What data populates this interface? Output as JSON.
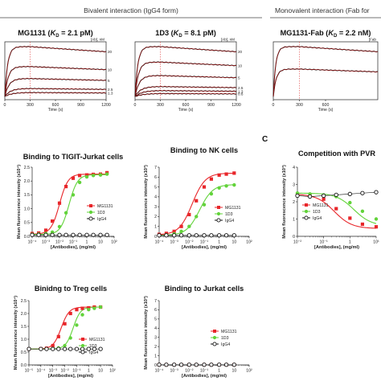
{
  "headers": {
    "bivalent": "Bivalent interaction (IgG4 form)",
    "monovalent": "Monovalent interaction (Fab for"
  },
  "panel_letters": {
    "c": "C"
  },
  "colors": {
    "mg1131": "#e8262a",
    "d13": "#62d33a",
    "igg4": "#111111",
    "fit": "#cc0000",
    "sensor": "#222222",
    "dash": "#e04040"
  },
  "legend_labels": [
    "MG1131",
    "1D3",
    "IgG4"
  ],
  "chart_data": [
    {
      "id": "spr_mg1131",
      "type": "line",
      "title": "MG1131 (KD = 2.1 pM)",
      "title_parts": [
        "MG1131 (",
        "K",
        "D",
        " = 2.1 pM)"
      ],
      "xlabel": "Time (s)",
      "x_ticks": [
        "0",
        "300",
        "600",
        "900",
        "1200"
      ],
      "xlim": [
        0,
        1200
      ],
      "conc_header": "[Ab], nM",
      "association_end": 300,
      "series": [
        {
          "name": "20",
          "plateau": 1.0,
          "kobs": 0.03
        },
        {
          "name": "10",
          "plateau": 0.6,
          "kobs": 0.025
        },
        {
          "name": "5",
          "plateau": 0.36,
          "kobs": 0.02
        },
        {
          "name": "2.5",
          "plateau": 0.16,
          "kobs": 0.015
        },
        {
          "name": "1.3",
          "plateau": 0.08,
          "kobs": 0.012
        }
      ]
    },
    {
      "id": "spr_1d3",
      "type": "line",
      "title": "1D3 (KD = 8.1 pM)",
      "title_parts": [
        "1D3 (",
        "K",
        "D",
        " = 8.1 pM)"
      ],
      "xlabel": "Time (s)",
      "x_ticks": [
        "0",
        "300",
        "600",
        "900",
        "1200"
      ],
      "xlim": [
        0,
        1200
      ],
      "conc_header": "[Ab], nM",
      "association_end": 300,
      "series": [
        {
          "name": "20",
          "plateau": 1.0,
          "kobs": 0.03
        },
        {
          "name": "10",
          "plateau": 0.69,
          "kobs": 0.025
        },
        {
          "name": "5",
          "plateau": 0.42,
          "kobs": 0.02
        },
        {
          "name": "2.5",
          "plateau": 0.2,
          "kobs": 0.015
        },
        {
          "name": "1.3",
          "plateau": 0.12,
          "kobs": 0.012
        },
        {
          "name": "0.6",
          "plateau": 0.06,
          "kobs": 0.01
        }
      ]
    },
    {
      "id": "spr_fab",
      "type": "line",
      "title": "MG1131-Fab (KD = 2.2 nM)",
      "title_parts": [
        "MG1131-Fab (",
        "K",
        "D",
        " = 2.2 nM)"
      ],
      "xlabel": "Time (s)",
      "x_ticks": [
        "0",
        "300",
        "600"
      ],
      "xlim": [
        0,
        1200
      ],
      "conc_header": "[Fab",
      "association_end": 300,
      "series": [
        {
          "name": "",
          "plateau": 1.0,
          "kobs": 0.035
        },
        {
          "name": "",
          "plateau": 0.55,
          "kobs": 0.03
        }
      ]
    },
    {
      "id": "tigit_jurkat",
      "type": "line",
      "title": "Binding to TIGIT-Jurkat cells",
      "xlabel": "[Antibodies], (mg/ml)",
      "ylabel": "Mean fluorescence intensity (x10⁴)",
      "x_ticks": [
        "10⁻⁴",
        "10⁻³",
        "10⁻²",
        "10⁻¹",
        "1",
        "10",
        "10²"
      ],
      "y_ticks": [
        "0.0",
        "0.5",
        "1.0",
        "1.5",
        "2.0",
        "2.5"
      ],
      "xlim_log10": [
        -4,
        2
      ],
      "ylim": [
        0,
        2.5
      ],
      "series": [
        {
          "name": "MG1131",
          "x": [
            0.0001,
            0.0003,
            0.001,
            0.003,
            0.01,
            0.03,
            0.1,
            0.3,
            1,
            3,
            10,
            30
          ],
          "y": [
            0.1,
            0.12,
            0.22,
            0.55,
            1.2,
            1.8,
            2.1,
            2.2,
            2.22,
            2.24,
            2.25,
            2.3
          ]
        },
        {
          "name": "1D3",
          "x": [
            0.0001,
            0.0003,
            0.001,
            0.003,
            0.01,
            0.03,
            0.1,
            0.3,
            1,
            3,
            10,
            30
          ],
          "y": [
            0.07,
            0.08,
            0.1,
            0.15,
            0.35,
            0.85,
            1.5,
            1.95,
            2.15,
            2.2,
            2.22,
            2.25
          ]
        },
        {
          "name": "IgG4",
          "x": [
            0.0001,
            0.0003,
            0.001,
            0.003,
            0.01,
            0.03,
            0.1,
            0.3,
            1,
            3,
            10,
            30
          ],
          "y": [
            0.05,
            0.05,
            0.05,
            0.05,
            0.05,
            0.05,
            0.05,
            0.05,
            0.05,
            0.05,
            0.05,
            0.05
          ]
        }
      ],
      "fit_ec50_log10": [
        -2.0,
        -1.3
      ],
      "fit_top": [
        2.25,
        2.23
      ],
      "fit_bottom": [
        0.08,
        0.07
      ],
      "fit_hill": [
        1.4,
        1.4
      ]
    },
    {
      "id": "nk_cells",
      "type": "line",
      "title": "Binding to NK cells",
      "xlabel": "[Antibodies], (mg/ml)",
      "ylabel": "Mean fluorescence intensity (x10³)",
      "x_ticks": [
        "10⁻⁴",
        "10⁻³",
        "10⁻²",
        "10⁻¹",
        "1",
        "10",
        "10²"
      ],
      "y_ticks": [
        "0",
        "1",
        "2",
        "3",
        "4",
        "5",
        "6",
        "7"
      ],
      "xlim_log10": [
        -4,
        2
      ],
      "ylim": [
        0,
        7
      ],
      "series": [
        {
          "name": "MG1131",
          "x": [
            0.0001,
            0.0003,
            0.001,
            0.003,
            0.01,
            0.03,
            0.1,
            0.3,
            1,
            3,
            10
          ],
          "y": [
            0.2,
            0.3,
            0.5,
            1.0,
            2.2,
            3.6,
            5.0,
            5.8,
            6.2,
            6.3,
            6.4
          ]
        },
        {
          "name": "1D3",
          "x": [
            0.0001,
            0.0003,
            0.001,
            0.003,
            0.01,
            0.03,
            0.1,
            0.3,
            1,
            3,
            10
          ],
          "y": [
            0.1,
            0.15,
            0.25,
            0.5,
            1.0,
            2.0,
            3.2,
            4.3,
            4.9,
            5.1,
            5.2
          ]
        },
        {
          "name": "IgG4",
          "x": [
            0.0001,
            0.0003,
            0.001,
            0.003,
            0.01,
            0.03,
            0.1,
            0.3,
            1,
            3,
            10
          ],
          "y": [
            0.1,
            0.1,
            0.1,
            0.1,
            0.1,
            0.1,
            0.1,
            0.1,
            0.1,
            0.1,
            0.1
          ]
        }
      ],
      "fit_ec50_log10": [
        -1.8,
        -1.3
      ],
      "fit_top": [
        6.4,
        5.25
      ],
      "fit_bottom": [
        0.15,
        0.1
      ],
      "fit_hill": [
        1.0,
        1.0
      ]
    },
    {
      "id": "competition_pvr",
      "type": "line",
      "title": "Competition with PVR",
      "xlabel": "[Antibodies], (mg/ml)",
      "ylabel": "Mean fluorescence intensity (x10³)",
      "x_ticks": [
        "10⁻²",
        "10⁻¹",
        "1",
        "10¹"
      ],
      "y_ticks": [
        "0",
        "1",
        "2",
        "3",
        "4"
      ],
      "xlim_log10": [
        -2,
        1
      ],
      "ylim": [
        0,
        4
      ],
      "series": [
        {
          "name": "MG1131",
          "x": [
            0.01,
            0.03,
            0.1,
            0.3,
            1,
            3,
            10
          ],
          "y": [
            2.4,
            2.35,
            2.15,
            1.6,
            1.05,
            0.7,
            0.55
          ]
        },
        {
          "name": "1D3",
          "x": [
            0.01,
            0.03,
            0.1,
            0.3,
            1,
            3,
            10
          ],
          "y": [
            2.5,
            2.45,
            2.4,
            2.3,
            1.95,
            1.45,
            1.0
          ]
        },
        {
          "name": "IgG4",
          "x": [
            0.01,
            0.03,
            0.1,
            0.3,
            1,
            3,
            10
          ],
          "y": [
            2.35,
            2.3,
            2.35,
            2.4,
            2.45,
            2.5,
            2.55
          ]
        }
      ],
      "fit_ec50_log10": [
        -0.6,
        0.15
      ],
      "fit_top": [
        2.45,
        2.5
      ],
      "fit_bottom": [
        0.45,
        0.6
      ],
      "fit_hill": [
        1.3,
        1.3
      ],
      "fit_decreasing": true
    },
    {
      "id": "treg_cells",
      "type": "line",
      "title": "Binidng to Treg cells",
      "xlabel": "[Antibodies], (mg/ml)",
      "ylabel": "Mean fluorescence intensity (x10⁴)",
      "x_ticks": [
        "10⁻⁵",
        "10⁻⁴",
        "10⁻³",
        "10⁻²",
        "10⁻¹",
        "1",
        "10",
        "10²"
      ],
      "y_ticks": [
        "0.0",
        "0.5",
        "1.0",
        "1.5",
        "2.0",
        "2.5"
      ],
      "xlim_log10": [
        -5,
        2
      ],
      "ylim": [
        0,
        2.5
      ],
      "series": [
        {
          "name": "MG1131",
          "x": [
            1e-05,
            0.0001,
            0.0003,
            0.001,
            0.003,
            0.01,
            0.03,
            0.1,
            0.3,
            1,
            3,
            10
          ],
          "y": [
            0.62,
            0.63,
            0.65,
            0.75,
            1.1,
            1.6,
            2.0,
            2.15,
            2.2,
            2.22,
            2.25,
            2.25
          ]
        },
        {
          "name": "1D3",
          "x": [
            1e-05,
            0.0001,
            0.0003,
            0.001,
            0.003,
            0.01,
            0.03,
            0.1,
            0.3,
            1,
            3,
            10
          ],
          "y": [
            0.62,
            0.62,
            0.63,
            0.64,
            0.66,
            0.75,
            1.05,
            1.55,
            1.95,
            2.15,
            2.2,
            2.25
          ]
        },
        {
          "name": "IgG4",
          "x": [
            1e-05,
            0.0001,
            0.0003,
            0.001,
            0.003,
            0.01,
            0.03,
            0.1,
            0.3,
            1,
            3,
            10
          ],
          "y": [
            0.62,
            0.62,
            0.62,
            0.62,
            0.62,
            0.62,
            0.62,
            0.62,
            0.62,
            0.62,
            0.62,
            0.62
          ]
        }
      ],
      "fit_ec50_log10": [
        -2.3,
        -1.3
      ],
      "fit_top": [
        2.25,
        2.25
      ],
      "fit_bottom": [
        0.62,
        0.62
      ],
      "fit_hill": [
        1.3,
        1.4
      ]
    },
    {
      "id": "jurkat_cells",
      "type": "line",
      "title": "Binding to Jurkat cells",
      "xlabel": "[Antibodies], (mg/ml)",
      "ylabel": "Mean fluorescence intensity (x10³)",
      "x_ticks": [
        "10⁻⁴",
        "10⁻³",
        "10⁻²",
        "10⁻¹",
        "1",
        "10",
        "10²"
      ],
      "y_ticks": [
        "0",
        "1",
        "2",
        "3",
        "4",
        "5",
        "6",
        "7"
      ],
      "xlim_log10": [
        -4,
        2
      ],
      "ylim": [
        0,
        7
      ],
      "series": [
        {
          "name": "MG1131",
          "x": [
            0.0001,
            0.0003,
            0.001,
            0.003,
            0.01,
            0.03,
            0.1,
            0.3,
            1,
            3,
            10
          ],
          "y": [
            0.02,
            0.02,
            0.02,
            0.02,
            0.02,
            0.02,
            0.02,
            0.02,
            0.02,
            0.02,
            0.02
          ]
        },
        {
          "name": "1D3",
          "x": [
            0.0001,
            0.0003,
            0.001,
            0.003,
            0.01,
            0.03,
            0.1,
            0.3,
            1,
            3,
            10
          ],
          "y": [
            0.02,
            0.02,
            0.02,
            0.02,
            0.02,
            0.02,
            0.02,
            0.02,
            0.02,
            0.02,
            0.02
          ]
        },
        {
          "name": "IgG4",
          "x": [
            0.0001,
            0.0003,
            0.001,
            0.003,
            0.01,
            0.03,
            0.1,
            0.3,
            1,
            3,
            10
          ],
          "y": [
            0.02,
            0.02,
            0.02,
            0.02,
            0.02,
            0.02,
            0.02,
            0.02,
            0.02,
            0.02,
            0.02
          ]
        }
      ]
    }
  ]
}
